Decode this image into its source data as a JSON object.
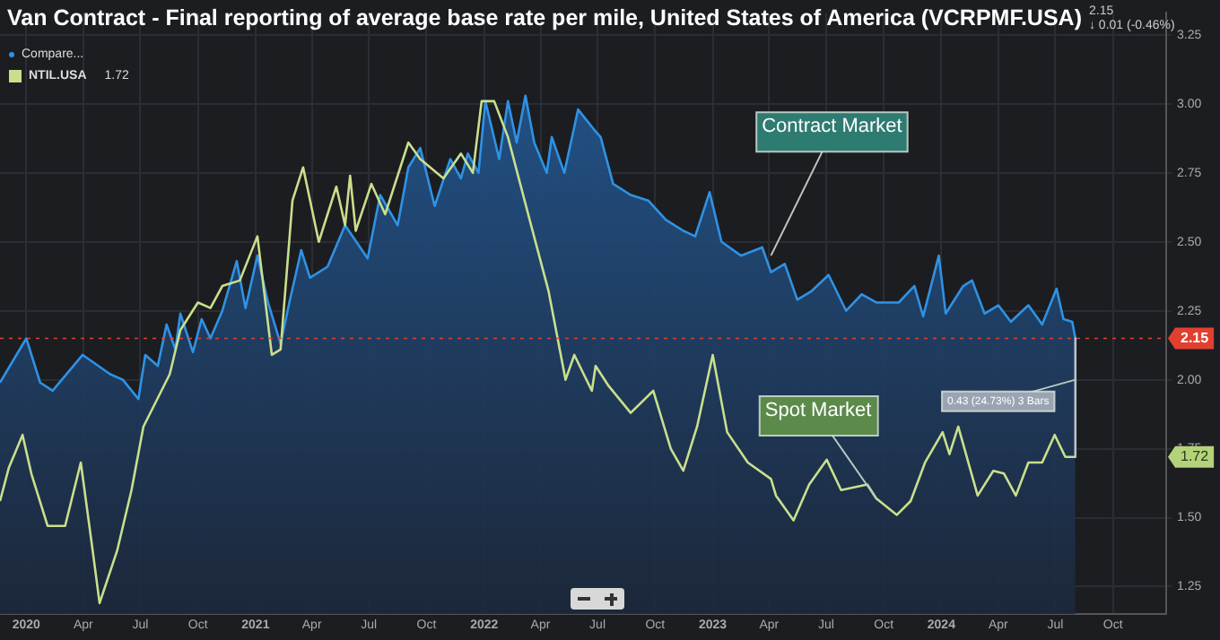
{
  "chart_data": {
    "type": "line",
    "title": "Van Contract - Final reporting of average base rate per mile, United States of America (VCRPMF.USA)",
    "legend": "top left",
    "grid": true,
    "marker": "none",
    "line_style": "solid",
    "xlim": [
      "2019-11-20",
      "2024-12-25"
    ],
    "xticks": [
      {
        "value": "2020-01-01",
        "label": "2020"
      },
      {
        "value": "2020-04-01",
        "label": "Apr"
      },
      {
        "value": "2020-07-01",
        "label": "Jul"
      },
      {
        "value": "2020-10-01",
        "label": "Oct"
      },
      {
        "value": "2021-01-01",
        "label": "2021"
      },
      {
        "value": "2021-04-01",
        "label": "Apr"
      },
      {
        "value": "2021-07-01",
        "label": "Jul"
      },
      {
        "value": "2021-10-01",
        "label": "Oct"
      },
      {
        "value": "2022-01-01",
        "label": "2022"
      },
      {
        "value": "2022-04-01",
        "label": "Apr"
      },
      {
        "value": "2022-07-01",
        "label": "Jul"
      },
      {
        "value": "2022-10-01",
        "label": "Oct"
      },
      {
        "value": "2023-01-01",
        "label": "2023"
      },
      {
        "value": "2023-04-01",
        "label": "Apr"
      },
      {
        "value": "2023-07-01",
        "label": "Jul"
      },
      {
        "value": "2023-10-01",
        "label": "Oct"
      },
      {
        "value": "2024-01-01",
        "label": "2024"
      },
      {
        "value": "2024-04-01",
        "label": "Apr"
      },
      {
        "value": "2024-07-01",
        "label": "Jul"
      },
      {
        "value": "2024-10-01",
        "label": "Oct"
      }
    ],
    "ylim": [
      1.15,
      3.33
    ],
    "yticks": [
      1.25,
      {
        "value": 1.5,
        "label": "1.50"
      },
      1.75,
      {
        "value": 2,
        "label": "2.00"
      },
      2.25,
      {
        "value": 2.5,
        "label": "2.50"
      },
      2.75,
      {
        "value": 3,
        "label": "3.00"
      },
      3.25
    ],
    "series": [
      {
        "name": "Compare...",
        "type": "area",
        "color": "#2f92e4",
        "x": [
          "2019-11-20",
          "2020-01-01",
          "2020-01-23",
          "2020-02-12",
          "2020-03-31",
          "2020-05-14",
          "2020-06-03",
          "2020-06-28",
          "2020-07-09",
          "2020-07-29",
          "2020-08-12",
          "2020-08-26",
          "2020-09-03",
          "2020-09-23",
          "2020-10-07",
          "2020-10-21",
          "2020-11-09",
          "2020-12-02",
          "2020-12-16",
          "2021-01-04",
          "2021-01-21",
          "2021-02-10",
          "2021-02-24",
          "2021-03-15",
          "2021-03-29",
          "2021-04-26",
          "2021-05-24",
          "2021-06-29",
          "2021-07-19",
          "2021-08-16",
          "2021-09-02",
          "2021-09-21",
          "2021-10-14",
          "2021-11-08",
          "2021-11-25",
          "2021-12-06",
          "2021-12-23",
          "2022-01-03",
          "2022-01-25",
          "2022-02-08",
          "2022-02-22",
          "2022-03-08",
          "2022-03-22",
          "2022-04-11",
          "2022-04-19",
          "2022-05-09",
          "2022-05-31",
          "2022-06-28",
          "2022-07-06",
          "2022-07-26",
          "2022-08-23",
          "2022-09-20",
          "2022-10-18",
          "2022-11-15",
          "2022-12-04",
          "2022-12-27",
          "2023-01-15",
          "2023-02-15",
          "2023-03-21",
          "2023-04-04",
          "2023-04-26",
          "2023-05-16",
          "2023-06-07",
          "2023-07-05",
          "2023-08-02",
          "2023-08-27",
          "2023-09-19",
          "2023-10-25",
          "2023-11-19",
          "2023-12-03",
          "2023-12-28",
          "2024-01-08",
          "2024-02-05",
          "2024-02-19",
          "2024-03-10",
          "2024-04-01",
          "2024-04-21",
          "2024-05-19",
          "2024-06-10",
          "2024-07-03",
          "2024-07-14",
          "2024-07-28",
          "2024-08-02"
        ],
        "values": [
          1.99,
          2.15,
          1.99,
          1.96,
          2.09,
          2.02,
          2.0,
          1.93,
          2.09,
          2.05,
          2.2,
          2.11,
          2.24,
          2.1,
          2.22,
          2.15,
          2.25,
          2.43,
          2.26,
          2.45,
          2.28,
          2.13,
          2.28,
          2.47,
          2.37,
          2.41,
          2.56,
          2.44,
          2.67,
          2.56,
          2.77,
          2.84,
          2.63,
          2.8,
          2.73,
          2.82,
          2.75,
          3.01,
          2.8,
          3.01,
          2.86,
          3.03,
          2.86,
          2.75,
          2.88,
          2.75,
          2.98,
          2.9,
          2.88,
          2.71,
          2.67,
          2.65,
          2.58,
          2.54,
          2.52,
          2.68,
          2.5,
          2.45,
          2.48,
          2.39,
          2.42,
          2.29,
          2.32,
          2.38,
          2.25,
          2.31,
          2.28,
          2.28,
          2.34,
          2.23,
          2.45,
          2.24,
          2.34,
          2.36,
          2.24,
          2.27,
          2.21,
          2.27,
          2.2,
          2.33,
          2.22,
          2.21,
          2.15
        ]
      },
      {
        "name": "NTIL.USA",
        "type": "line",
        "color": "#c9df8c",
        "x": [
          "2019-11-20",
          "2019-12-04",
          "2019-12-26",
          "2020-01-09",
          "2020-02-04",
          "2020-03-03",
          "2020-03-28",
          "2020-04-16",
          "2020-04-27",
          "2020-05-25",
          "2020-06-17",
          "2020-07-06",
          "2020-08-17",
          "2020-09-03",
          "2020-10-01",
          "2020-10-21",
          "2020-11-09",
          "2020-12-07",
          "2021-01-04",
          "2021-01-27",
          "2021-02-10",
          "2021-03-01",
          "2021-03-18",
          "2021-04-12",
          "2021-05-10",
          "2021-05-24",
          "2021-06-01",
          "2021-06-10",
          "2021-07-05",
          "2021-07-27",
          "2021-09-02",
          "2021-09-21",
          "2021-10-28",
          "2021-11-25",
          "2021-12-14",
          "2021-12-28",
          "2022-01-17",
          "2022-02-08",
          "2022-03-17",
          "2022-04-14",
          "2022-05-11",
          "2022-05-25",
          "2022-06-22",
          "2022-06-28",
          "2022-07-18",
          "2022-08-23",
          "2022-09-28",
          "2022-10-26",
          "2022-11-15",
          "2022-12-07",
          "2023-01-01",
          "2023-01-24",
          "2023-02-26",
          "2023-04-04",
          "2023-04-12",
          "2023-05-10",
          "2023-06-04",
          "2023-07-02",
          "2023-07-25",
          "2023-09-05",
          "2023-09-19",
          "2023-10-22",
          "2023-11-13",
          "2023-12-06",
          "2024-01-03",
          "2024-01-14",
          "2024-01-28",
          "2024-02-28",
          "2024-03-24",
          "2024-04-10",
          "2024-04-29",
          "2024-05-19",
          "2024-06-10",
          "2024-06-30",
          "2024-07-17",
          "2024-08-02"
        ],
        "values": [
          1.56,
          1.68,
          1.8,
          1.66,
          1.47,
          1.47,
          1.7,
          1.38,
          1.19,
          1.38,
          1.6,
          1.83,
          2.02,
          2.18,
          2.28,
          2.26,
          2.34,
          2.36,
          2.52,
          2.09,
          2.11,
          2.65,
          2.77,
          2.5,
          2.7,
          2.56,
          2.74,
          2.54,
          2.71,
          2.6,
          2.86,
          2.8,
          2.73,
          2.82,
          2.75,
          3.01,
          3.01,
          2.88,
          2.56,
          2.32,
          2.0,
          2.09,
          1.96,
          2.05,
          1.98,
          1.88,
          1.96,
          1.75,
          1.67,
          1.83,
          2.09,
          1.81,
          1.7,
          1.64,
          1.58,
          1.49,
          1.62,
          1.71,
          1.6,
          1.62,
          1.57,
          1.51,
          1.56,
          1.7,
          1.81,
          1.73,
          1.83,
          1.58,
          1.67,
          1.66,
          1.58,
          1.7,
          1.7,
          1.8,
          1.72,
          1.72
        ]
      },
      {
        "type": "line",
        "color": "#b8c0cc",
        "x": [
          "2024-08-02",
          "2024-08-02"
        ],
        "values": [
          2.15,
          1.72
        ]
      }
    ],
    "ref_lines": [
      {
        "axis": "y",
        "value": 2.15,
        "label": "2.15",
        "color": "#e0402e",
        "line_style": "dotted"
      }
    ],
    "annotations": [
      "2.15",
      "↓ 0.01 (-0.46%)",
      "1.72",
      "1.72",
      {
        "text": "Contract Market",
        "x": "2023-04-04",
        "y": 2.45
      },
      {
        "text": "Spot Market",
        "x": "2023-09-19",
        "y": 1.57
      },
      {
        "text": "0.43 (24.73%) 3 Bars",
        "x": "2024-08-02",
        "y": 2.0
      }
    ]
  }
}
